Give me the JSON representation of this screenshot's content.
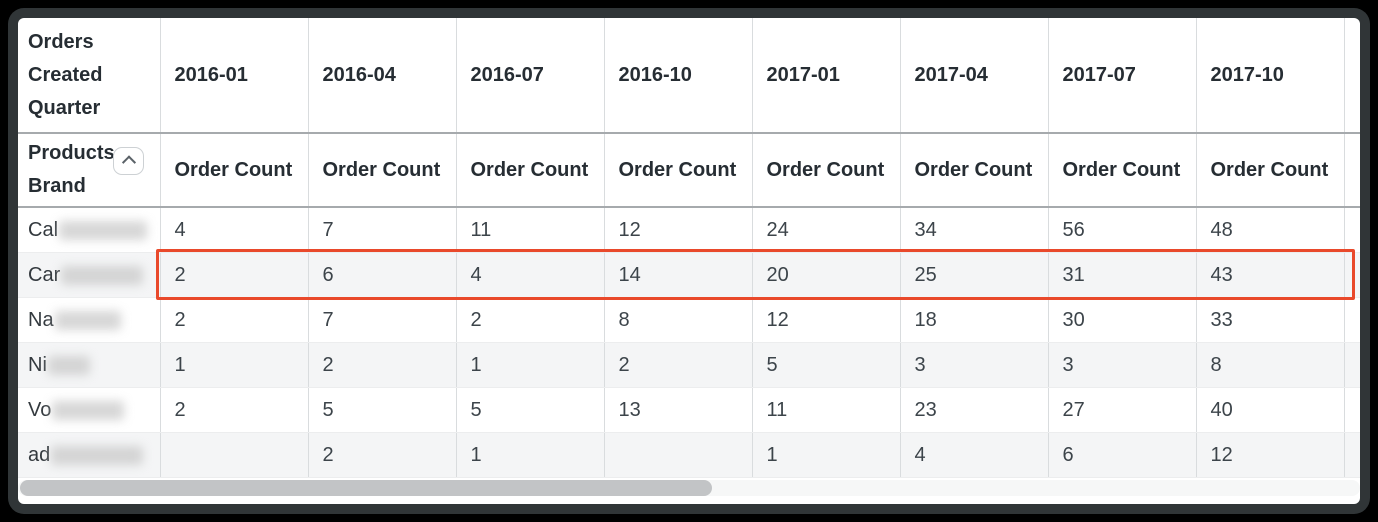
{
  "table": {
    "corner_header": "Orders Created Quarter",
    "row_dimension_header": "Products Brand",
    "measure_label": "Order Count",
    "sort_icon": "chevron-up-icon",
    "quarters": [
      "2016-01",
      "2016-04",
      "2016-07",
      "2016-10",
      "2017-01",
      "2017-04",
      "2017-07",
      "2017-10"
    ],
    "rows": [
      {
        "brand_prefix": "Cal",
        "brand_redacted": true,
        "highlighted": false,
        "values": [
          "4",
          "7",
          "11",
          "12",
          "24",
          "34",
          "56",
          "48"
        ]
      },
      {
        "brand_prefix": "Car",
        "brand_redacted": true,
        "highlighted": true,
        "values": [
          "2",
          "6",
          "4",
          "14",
          "20",
          "25",
          "31",
          "43"
        ]
      },
      {
        "brand_prefix": "Na",
        "brand_redacted": true,
        "highlighted": false,
        "values": [
          "2",
          "7",
          "2",
          "8",
          "12",
          "18",
          "30",
          "33"
        ]
      },
      {
        "brand_prefix": "Ni",
        "brand_redacted": true,
        "highlighted": false,
        "values": [
          "1",
          "2",
          "1",
          "2",
          "5",
          "3",
          "3",
          "8"
        ]
      },
      {
        "brand_prefix": "Vo",
        "brand_redacted": true,
        "highlighted": false,
        "values": [
          "2",
          "5",
          "5",
          "13",
          "11",
          "23",
          "27",
          "40"
        ]
      },
      {
        "brand_prefix": "ad",
        "brand_redacted": true,
        "highlighted": false,
        "values": [
          "",
          "2",
          "1",
          "",
          "1",
          "4",
          "6",
          "12"
        ]
      }
    ]
  },
  "colors": {
    "highlight_border": "#e9492b",
    "alt_row_background": "#f4f5f6",
    "header_text": "#262d33",
    "frame": "#303537"
  }
}
